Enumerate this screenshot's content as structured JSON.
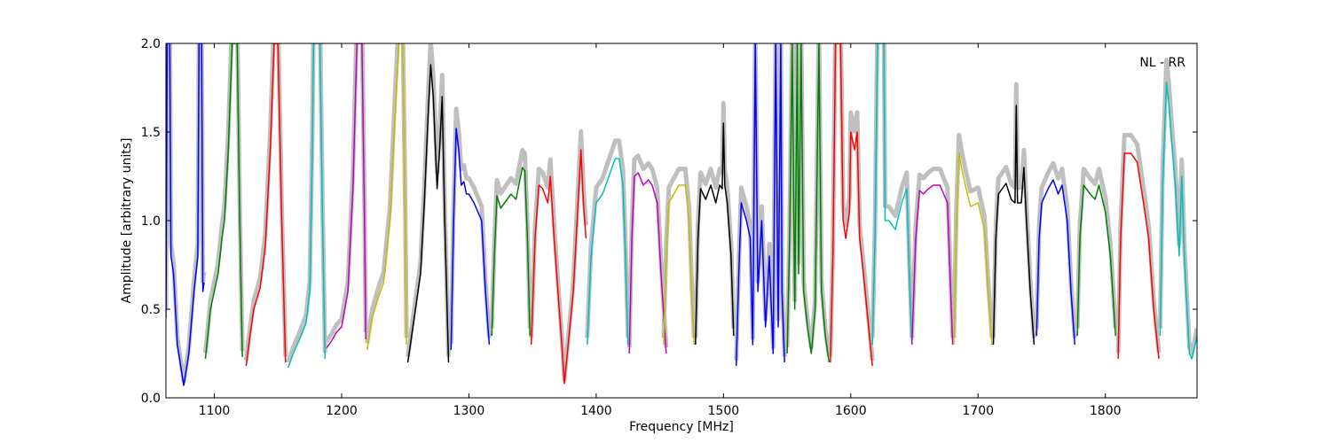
{
  "chart_data": {
    "type": "line",
    "title": "",
    "annotation": "NL - RR",
    "xlabel": "Frequency [MHz]",
    "ylabel": "Amplitude [arbitrary units]",
    "xlim": [
      1062,
      1872
    ],
    "ylim": [
      0.0,
      2.0
    ],
    "grid": false,
    "xticks": [
      1100,
      1200,
      1300,
      1400,
      1500,
      1600,
      1700,
      1800
    ],
    "xtick_labels": [
      "1100",
      "1200",
      "1300",
      "1400",
      "1500",
      "1600",
      "1700",
      "1800"
    ],
    "yticks": [
      0.0,
      0.5,
      1.0,
      1.5,
      2.0
    ],
    "ytick_labels": [
      "0.0",
      "0.5",
      "1.0",
      "1.5",
      "2.0"
    ],
    "envelope_color": "#bfbfbf",
    "series": [
      {
        "color": "#0000ff",
        "points": [
          [
            1062,
            0.45
          ],
          [
            1063,
            2.0
          ],
          [
            1065,
            2.0
          ],
          [
            1066,
            0.8
          ],
          [
            1068,
            0.7
          ],
          [
            1071,
            0.3
          ],
          [
            1076,
            0.07
          ],
          [
            1080,
            0.25
          ],
          [
            1084,
            0.6
          ],
          [
            1087,
            0.8
          ],
          [
            1088,
            2.0
          ],
          [
            1090,
            2.0
          ],
          [
            1091,
            0.6
          ],
          [
            1092,
            0.65
          ]
        ]
      },
      {
        "color": "#008000",
        "points": [
          [
            1093,
            0.22
          ],
          [
            1097,
            0.5
          ],
          [
            1103,
            0.7
          ],
          [
            1106,
            0.9
          ],
          [
            1108,
            1.0
          ],
          [
            1111,
            1.4
          ],
          [
            1114,
            2.0
          ],
          [
            1118,
            2.0
          ],
          [
            1120,
            1.0
          ],
          [
            1122,
            0.23
          ]
        ]
      },
      {
        "color": "#ff0000",
        "points": [
          [
            1125,
            0.18
          ],
          [
            1128,
            0.35
          ],
          [
            1131,
            0.5
          ],
          [
            1136,
            0.62
          ],
          [
            1140,
            0.85
          ],
          [
            1144,
            1.4
          ],
          [
            1147,
            2.0
          ],
          [
            1150,
            2.0
          ],
          [
            1153,
            1.0
          ],
          [
            1156,
            0.2
          ]
        ]
      },
      {
        "color": "#00bfbf",
        "points": [
          [
            1158,
            0.17
          ],
          [
            1162,
            0.25
          ],
          [
            1167,
            0.33
          ],
          [
            1172,
            0.42
          ],
          [
            1175,
            0.6
          ],
          [
            1177,
            1.4
          ],
          [
            1178,
            2.0
          ],
          [
            1183,
            2.0
          ],
          [
            1185,
            1.0
          ],
          [
            1187,
            0.22
          ]
        ]
      },
      {
        "color": "#bf00bf",
        "points": [
          [
            1188,
            0.28
          ],
          [
            1192,
            0.32
          ],
          [
            1196,
            0.37
          ],
          [
            1200,
            0.4
          ],
          [
            1205,
            0.6
          ],
          [
            1209,
            1.2
          ],
          [
            1212,
            2.0
          ],
          [
            1216,
            2.0
          ],
          [
            1218,
            1.0
          ],
          [
            1219,
            0.33
          ]
        ]
      },
      {
        "color": "#bfbf00",
        "points": [
          [
            1220,
            0.27
          ],
          [
            1224,
            0.45
          ],
          [
            1229,
            0.57
          ],
          [
            1233,
            0.65
          ],
          [
            1238,
            1.0
          ],
          [
            1242,
            1.6
          ],
          [
            1245,
            2.0
          ],
          [
            1248,
            2.0
          ],
          [
            1250,
            1.0
          ],
          [
            1251,
            0.3
          ]
        ]
      },
      {
        "color": "#000000",
        "points": [
          [
            1252,
            0.2
          ],
          [
            1255,
            0.35
          ],
          [
            1258,
            0.5
          ],
          [
            1262,
            0.7
          ],
          [
            1265,
            1.1
          ],
          [
            1268,
            1.6
          ],
          [
            1270,
            1.88
          ],
          [
            1272,
            1.7
          ],
          [
            1275,
            1.18
          ],
          [
            1277,
            1.4
          ],
          [
            1279,
            1.7
          ],
          [
            1281,
            1.0
          ],
          [
            1284,
            0.2
          ]
        ]
      },
      {
        "color": "#0000ff",
        "points": [
          [
            1286,
            0.27
          ],
          [
            1288,
            1.0
          ],
          [
            1290,
            1.52
          ],
          [
            1292,
            1.4
          ],
          [
            1294,
            1.2
          ],
          [
            1296,
            1.22
          ],
          [
            1298,
            1.15
          ],
          [
            1300,
            1.15
          ],
          [
            1304,
            1.1
          ],
          [
            1310,
            1.0
          ],
          [
            1313,
            0.6
          ],
          [
            1316,
            0.3
          ]
        ]
      },
      {
        "color": "#008000",
        "points": [
          [
            1318,
            0.35
          ],
          [
            1320,
            0.8
          ],
          [
            1322,
            1.14
          ],
          [
            1325,
            1.07
          ],
          [
            1330,
            1.12
          ],
          [
            1333,
            1.15
          ],
          [
            1337,
            1.12
          ],
          [
            1342,
            1.3
          ],
          [
            1344,
            1.28
          ],
          [
            1346,
            0.9
          ],
          [
            1348,
            0.35
          ]
        ]
      },
      {
        "color": "#ff0000",
        "points": [
          [
            1349,
            0.3
          ],
          [
            1352,
            0.9
          ],
          [
            1355,
            1.2
          ],
          [
            1358,
            1.18
          ],
          [
            1362,
            1.1
          ],
          [
            1364,
            1.25
          ],
          [
            1367,
            0.9
          ],
          [
            1370,
            0.6
          ],
          [
            1373,
            0.3
          ],
          [
            1375,
            0.08
          ],
          [
            1378,
            0.3
          ],
          [
            1382,
            0.6
          ],
          [
            1385,
            1.0
          ],
          [
            1388,
            1.4
          ],
          [
            1390,
            1.1
          ],
          [
            1392,
            0.9
          ]
        ]
      },
      {
        "color": "#00bfbf",
        "points": [
          [
            1393,
            0.3
          ],
          [
            1396,
            0.8
          ],
          [
            1400,
            1.1
          ],
          [
            1405,
            1.15
          ],
          [
            1410,
            1.25
          ],
          [
            1415,
            1.35
          ],
          [
            1418,
            1.35
          ],
          [
            1421,
            1.2
          ],
          [
            1423,
            0.8
          ],
          [
            1425,
            0.3
          ]
        ]
      },
      {
        "color": "#bf00bf",
        "points": [
          [
            1426,
            0.25
          ],
          [
            1428,
            0.9
          ],
          [
            1430,
            1.25
          ],
          [
            1433,
            1.27
          ],
          [
            1437,
            1.2
          ],
          [
            1441,
            1.23
          ],
          [
            1444,
            1.2
          ],
          [
            1448,
            1.1
          ],
          [
            1451,
            0.7
          ],
          [
            1455,
            0.25
          ]
        ]
      },
      {
        "color": "#bfbf00",
        "points": [
          [
            1453,
            0.3
          ],
          [
            1455,
            0.8
          ],
          [
            1457,
            1.1
          ],
          [
            1461,
            1.15
          ],
          [
            1465,
            1.2
          ],
          [
            1470,
            1.2
          ],
          [
            1473,
            1.0
          ],
          [
            1475,
            0.6
          ],
          [
            1477,
            0.3
          ]
        ]
      },
      {
        "color": "#000000",
        "points": [
          [
            1478,
            0.3
          ],
          [
            1480,
            0.9
          ],
          [
            1482,
            1.18
          ],
          [
            1486,
            1.12
          ],
          [
            1490,
            1.2
          ],
          [
            1494,
            1.1
          ],
          [
            1497,
            1.2
          ],
          [
            1499,
            1.18
          ],
          [
            1500,
            1.55
          ],
          [
            1501,
            1.2
          ],
          [
            1503,
            1.1
          ],
          [
            1506,
            0.8
          ],
          [
            1508,
            0.35
          ]
        ]
      },
      {
        "color": "#0000ff",
        "points": [
          [
            1510,
            0.18
          ],
          [
            1512,
            0.7
          ],
          [
            1514,
            1.1
          ],
          [
            1518,
            1.0
          ],
          [
            1521,
            0.9
          ],
          [
            1523,
            0.3
          ],
          [
            1525,
            2.0
          ],
          [
            1527,
            0.6
          ],
          [
            1530,
            1.0
          ],
          [
            1533,
            0.4
          ],
          [
            1536,
            0.8
          ],
          [
            1539,
            0.25
          ],
          [
            1541,
            2.0
          ],
          [
            1543,
            0.4
          ],
          [
            1545,
            2.0
          ],
          [
            1546,
            0.6
          ],
          [
            1548,
            0.2
          ]
        ]
      },
      {
        "color": "#008000",
        "points": [
          [
            1550,
            0.25
          ],
          [
            1552,
            0.9
          ],
          [
            1554,
            2.0
          ],
          [
            1556,
            0.5
          ],
          [
            1558,
            2.0
          ],
          [
            1559,
            0.7
          ],
          [
            1561,
            2.0
          ],
          [
            1563,
            0.6
          ],
          [
            1566,
            0.4
          ],
          [
            1569,
            0.25
          ],
          [
            1572,
            0.5
          ],
          [
            1575,
            2.0
          ],
          [
            1577,
            0.6
          ],
          [
            1580,
            0.35
          ],
          [
            1583,
            0.2
          ]
        ]
      },
      {
        "color": "#ff0000",
        "points": [
          [
            1584,
            0.2
          ],
          [
            1586,
            0.8
          ],
          [
            1588,
            2.0
          ],
          [
            1592,
            2.0
          ],
          [
            1594,
            1.0
          ],
          [
            1596,
            0.9
          ],
          [
            1599,
            1.05
          ],
          [
            1600,
            1.5
          ],
          [
            1603,
            1.4
          ],
          [
            1605,
            1.5
          ],
          [
            1607,
            0.9
          ],
          [
            1610,
            0.7
          ],
          [
            1614,
            0.4
          ],
          [
            1617,
            0.18
          ]
        ]
      },
      {
        "color": "#00bfbf",
        "points": [
          [
            1617,
            0.3
          ],
          [
            1619,
            0.9
          ],
          [
            1621,
            2.0
          ],
          [
            1626,
            2.0
          ],
          [
            1627,
            1.0
          ],
          [
            1630,
            1.0
          ],
          [
            1635,
            0.95
          ],
          [
            1640,
            1.1
          ],
          [
            1644,
            1.18
          ],
          [
            1646,
            0.7
          ],
          [
            1648,
            0.3
          ]
        ]
      },
      {
        "color": "#bf00bf",
        "points": [
          [
            1648,
            0.3
          ],
          [
            1651,
            0.9
          ],
          [
            1654,
            1.17
          ],
          [
            1657,
            1.15
          ],
          [
            1661,
            1.18
          ],
          [
            1665,
            1.2
          ],
          [
            1670,
            1.2
          ],
          [
            1676,
            1.1
          ],
          [
            1678,
            0.7
          ],
          [
            1680,
            0.3
          ]
        ]
      },
      {
        "color": "#bfbf00",
        "points": [
          [
            1681,
            0.3
          ],
          [
            1683,
            1.0
          ],
          [
            1685,
            1.38
          ],
          [
            1687,
            1.3
          ],
          [
            1690,
            1.2
          ],
          [
            1694,
            1.08
          ],
          [
            1700,
            1.1
          ],
          [
            1705,
            0.95
          ],
          [
            1708,
            0.6
          ],
          [
            1711,
            0.3
          ]
        ]
      },
      {
        "color": "#000000",
        "points": [
          [
            1712,
            0.3
          ],
          [
            1714,
            0.9
          ],
          [
            1716,
            1.15
          ],
          [
            1719,
            1.18
          ],
          [
            1722,
            1.21
          ],
          [
            1726,
            1.12
          ],
          [
            1729,
            1.1
          ],
          [
            1730,
            1.65
          ],
          [
            1731,
            1.1
          ],
          [
            1734,
            1.1
          ],
          [
            1736,
            1.3
          ],
          [
            1738,
            1.0
          ],
          [
            1741,
            0.6
          ],
          [
            1744,
            0.3
          ]
        ]
      },
      {
        "color": "#0000ff",
        "points": [
          [
            1746,
            0.35
          ],
          [
            1748,
            0.9
          ],
          [
            1750,
            1.1
          ],
          [
            1755,
            1.18
          ],
          [
            1759,
            1.23
          ],
          [
            1763,
            1.15
          ],
          [
            1766,
            1.2
          ],
          [
            1770,
            1.0
          ],
          [
            1773,
            0.6
          ],
          [
            1776,
            0.3
          ]
        ]
      },
      {
        "color": "#008000",
        "points": [
          [
            1778,
            0.35
          ],
          [
            1780,
            0.9
          ],
          [
            1783,
            1.2
          ],
          [
            1788,
            1.15
          ],
          [
            1792,
            1.12
          ],
          [
            1795,
            1.2
          ],
          [
            1800,
            1.05
          ],
          [
            1804,
            0.8
          ],
          [
            1808,
            0.35
          ]
        ]
      },
      {
        "color": "#ff0000",
        "points": [
          [
            1810,
            0.22
          ],
          [
            1812,
            0.9
          ],
          [
            1815,
            1.38
          ],
          [
            1820,
            1.38
          ],
          [
            1825,
            1.33
          ],
          [
            1830,
            1.1
          ],
          [
            1834,
            0.9
          ],
          [
            1838,
            0.5
          ],
          [
            1842,
            0.22
          ]
        ]
      },
      {
        "color": "#00bfbf",
        "points": [
          [
            1843,
            0.35
          ],
          [
            1845,
            1.2
          ],
          [
            1848,
            1.78
          ],
          [
            1850,
            1.65
          ],
          [
            1852,
            1.45
          ],
          [
            1855,
            1.2
          ],
          [
            1858,
            0.8
          ],
          [
            1860,
            1.25
          ],
          [
            1862,
            0.8
          ],
          [
            1866,
            0.25
          ],
          [
            1868,
            0.22
          ],
          [
            1872,
            0.35
          ]
        ]
      }
    ]
  }
}
